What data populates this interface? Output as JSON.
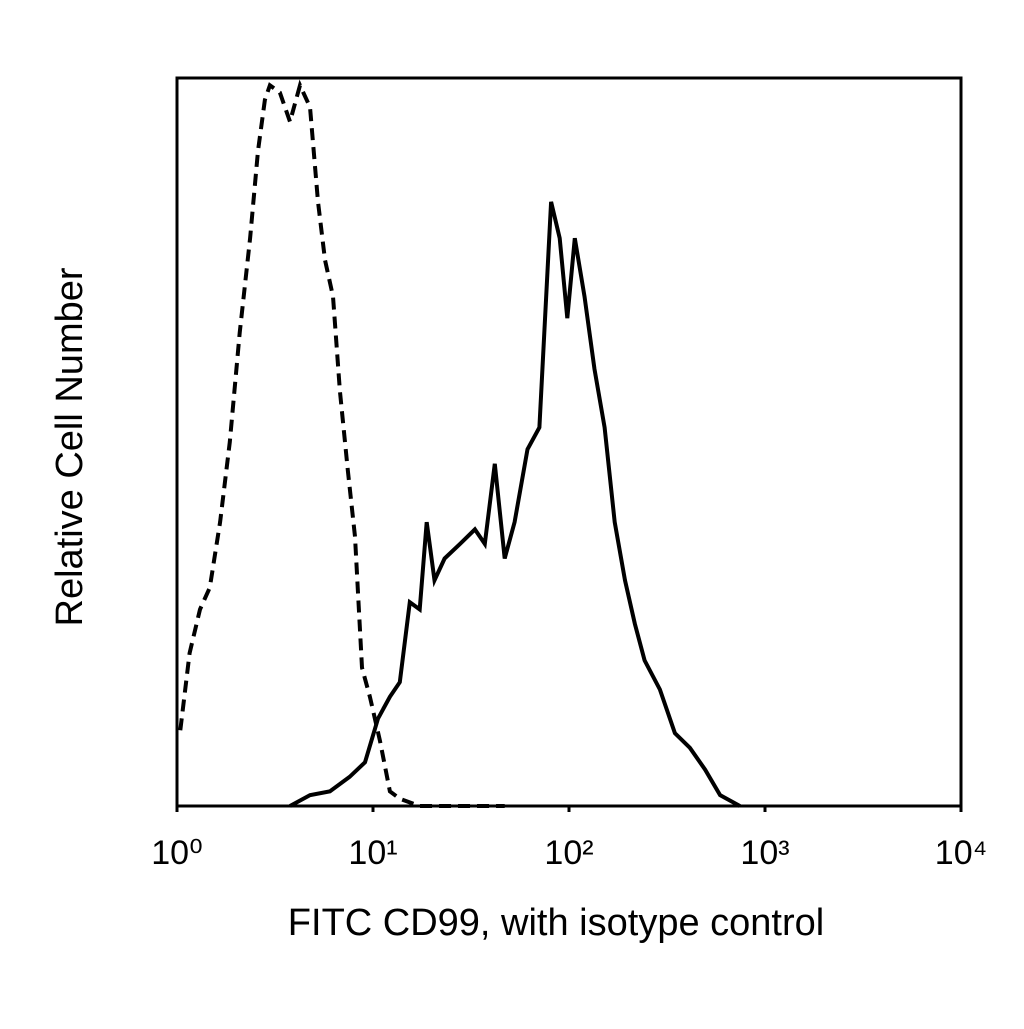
{
  "chart_data": {
    "type": "line",
    "xscale": "log",
    "grid": false,
    "xlabel": "FITC CD99, with isotype control",
    "ylabel": "Relative Cell Number",
    "xlim": [
      1,
      10000
    ],
    "xticks": [
      {
        "value": 1,
        "label": "10⁰"
      },
      {
        "value": 10,
        "label": "10¹"
      },
      {
        "value": 100,
        "label": "10²"
      },
      {
        "value": 1000,
        "label": "10³"
      },
      {
        "value": 10000,
        "label": "10⁴"
      }
    ],
    "ylim": [
      0,
      100
    ],
    "series": [
      {
        "color": "#000000",
        "dashed": true,
        "x": [
          1.04,
          1.16,
          1.31,
          1.47,
          1.66,
          1.86,
          2.09,
          2.36,
          2.59,
          2.81,
          2.98,
          3.35,
          3.77,
          4.24,
          4.77,
          5.24,
          5.69,
          6.25,
          6.78,
          7.45,
          8.09,
          8.79,
          9.64,
          10.85,
          12.2,
          13.7,
          17.3,
          47
        ],
        "values": [
          10.4,
          21,
          27,
          30,
          39,
          50,
          65,
          78,
          90,
          97,
          99,
          98,
          94,
          99,
          96,
          83,
          75,
          70,
          57,
          46,
          37,
          19,
          15,
          9,
          2,
          1,
          0,
          0
        ]
      },
      {
        "color": "#000000",
        "dashed": false,
        "x": [
          3.77,
          4.77,
          6.03,
          7.6,
          9.1,
          10.6,
          12.2,
          13.7,
          15.4,
          17.3,
          18.8,
          20.6,
          23.2,
          27.8,
          33.1,
          37.2,
          41.8,
          47,
          52.8,
          61.4,
          70.6,
          74.8,
          81,
          89.6,
          98,
          107,
          120,
          135,
          152,
          171,
          193,
          217,
          243,
          291,
          347,
          414,
          495,
          590,
          745
        ],
        "values": [
          0,
          1.5,
          2,
          4,
          6,
          12,
          15,
          17,
          28,
          27,
          39,
          31,
          34,
          36,
          38,
          36,
          47,
          34,
          39,
          49,
          52,
          65,
          83,
          78,
          67,
          78,
          70,
          60,
          52,
          39,
          31,
          25,
          20,
          16,
          10,
          8,
          5,
          1.5,
          0
        ]
      }
    ]
  }
}
